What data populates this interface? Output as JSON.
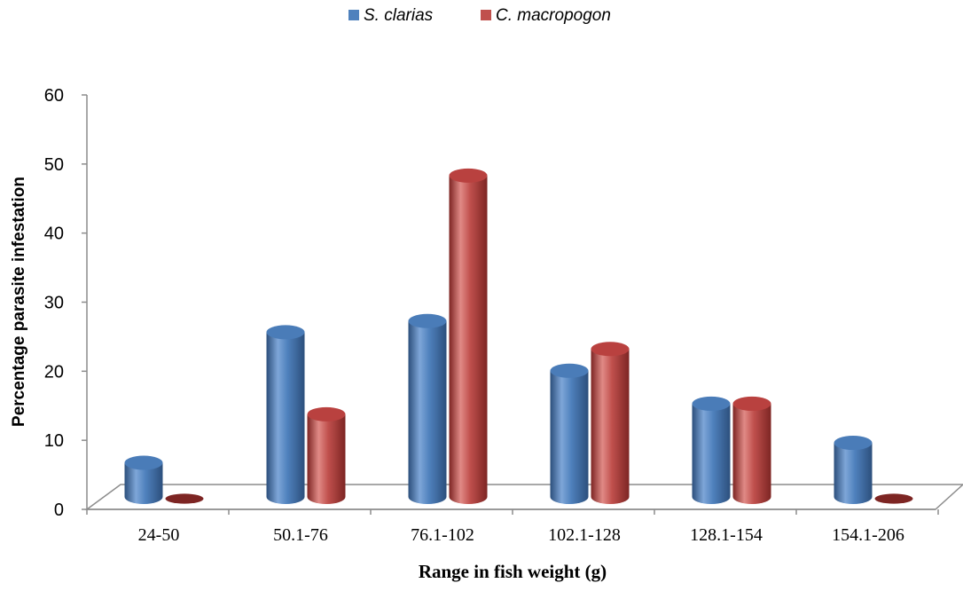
{
  "chart_data": {
    "type": "bar",
    "style": "3d-cylinder",
    "categories": [
      "24-50",
      "50.1-76",
      "76.1-102",
      "102.1-128",
      "128.1-154",
      "154.1-206"
    ],
    "series": [
      {
        "name": "S. clarias",
        "values": [
          5.5,
          26.5,
          28.3,
          20.3,
          15.0,
          8.7
        ],
        "color": "#4f81bd"
      },
      {
        "name": "C. macropogon",
        "values": [
          0,
          13.3,
          51.7,
          23.8,
          15.0,
          0
        ],
        "color": "#c0504d"
      }
    ],
    "xlabel": "Range in fish weight (g)",
    "ylabel": "Percentage parasite infestation",
    "ylim": [
      0,
      60
    ],
    "yticks": [
      0,
      10,
      20,
      30,
      40,
      50,
      60
    ],
    "legend_position": "top-center",
    "grid": false
  }
}
